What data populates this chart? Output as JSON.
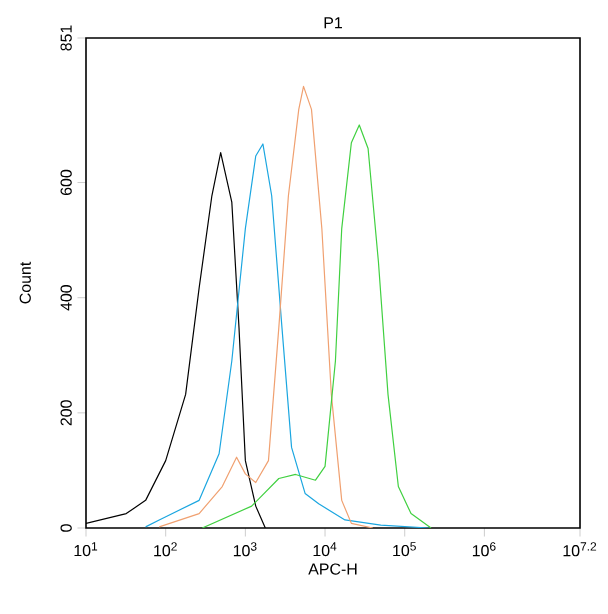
{
  "chart_data": {
    "type": "line",
    "title": "P1",
    "xlabel": "APC-H",
    "ylabel": "Count",
    "log": "x",
    "xlim": [
      10,
      15848932
    ],
    "ylim": [
      0,
      851
    ],
    "xticks": [
      {
        "value": 10,
        "label": "10$^{1}$"
      },
      {
        "value": 100,
        "label": "10$^{2}$"
      },
      {
        "value": 1000,
        "label": "10$^{3}$"
      },
      {
        "value": 10000,
        "label": "10$^{4}$"
      },
      {
        "value": 100000,
        "label": "10$^{5}$"
      },
      {
        "value": 1000000,
        "label": "10$^{6}$"
      },
      {
        "value": 15848932,
        "label": "10$^{7.2}$"
      }
    ],
    "yticks": [
      0,
      200,
      400,
      600,
      851
    ],
    "series": [
      {
        "color": "#000000",
        "x": [
          10,
          32,
          56,
          100,
          178,
          263,
          380,
          490,
          676,
          832,
          1000,
          1350,
          1780
        ],
        "values": [
          8,
          25,
          48,
          117,
          232,
          417,
          577,
          652,
          566,
          348,
          117,
          38,
          0
        ]
      },
      {
        "color": "#1ba6e0",
        "x": [
          56,
          83,
          263,
          468,
          676,
          1000,
          1350,
          1660,
          2140,
          2880,
          3800,
          5620,
          8320,
          17800,
          50100,
          200000
        ],
        "values": [
          2,
          14,
          48,
          129,
          290,
          520,
          646,
          667,
          577,
          348,
          140,
          60,
          42,
          14,
          5,
          0
        ]
      },
      {
        "color": "#f0a070",
        "x": [
          83,
          263,
          513,
          776,
          1000,
          1350,
          1950,
          2630,
          3470,
          4680,
          5370,
          6760,
          9120,
          12000,
          16200,
          21400,
          39800
        ],
        "values": [
          2,
          25,
          72,
          123,
          94,
          79,
          117,
          348,
          577,
          727,
          767,
          727,
          520,
          232,
          48,
          8,
          0
        ]
      },
      {
        "color": "#40d040",
        "x": [
          288,
          1200,
          2630,
          4270,
          7590,
          10000,
          13500,
          16200,
          21400,
          26900,
          34700,
          46800,
          61700,
          83200,
          120000,
          214000
        ],
        "values": [
          0,
          38,
          86,
          93,
          83,
          107,
          290,
          520,
          669,
          700,
          659,
          462,
          232,
          72,
          25,
          0
        ]
      }
    ]
  }
}
